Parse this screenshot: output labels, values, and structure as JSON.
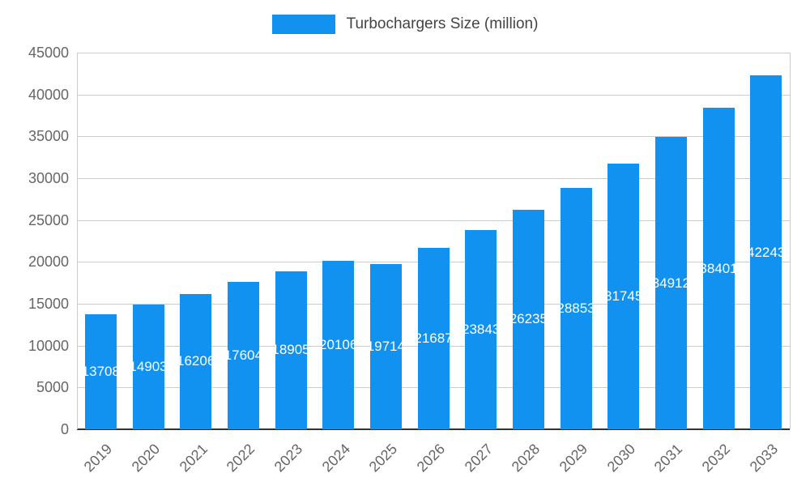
{
  "chart_data": {
    "type": "bar",
    "title": "Turbochargers Size (million)",
    "legend_label": "Turbochargers Size (million)",
    "legend_position": "top",
    "grid": true,
    "categories": [
      "2019",
      "2020",
      "2021",
      "2022",
      "2023",
      "2024",
      "2025",
      "2026",
      "2027",
      "2028",
      "2029",
      "2030",
      "2031",
      "2032",
      "2033"
    ],
    "values": [
      13708,
      14903,
      16206,
      17604,
      18905,
      20106,
      19714,
      21687,
      23843,
      26235,
      28853,
      31745,
      34912,
      38401,
      42243
    ],
    "ylim": [
      0,
      45000
    ],
    "ytick_interval": 5000,
    "ytick_labels": [
      "0",
      "5000",
      "10000",
      "15000",
      "20000",
      "25000",
      "30000",
      "35000",
      "40000",
      "45000"
    ],
    "colors": {
      "bar": "#1292F0",
      "bar_label": "#FFFFFF",
      "axis_text": "#666666",
      "legend_text": "#444444",
      "gridline": "#CCCCCC",
      "baseline": "#333333",
      "background": "#FFFFFF"
    }
  }
}
